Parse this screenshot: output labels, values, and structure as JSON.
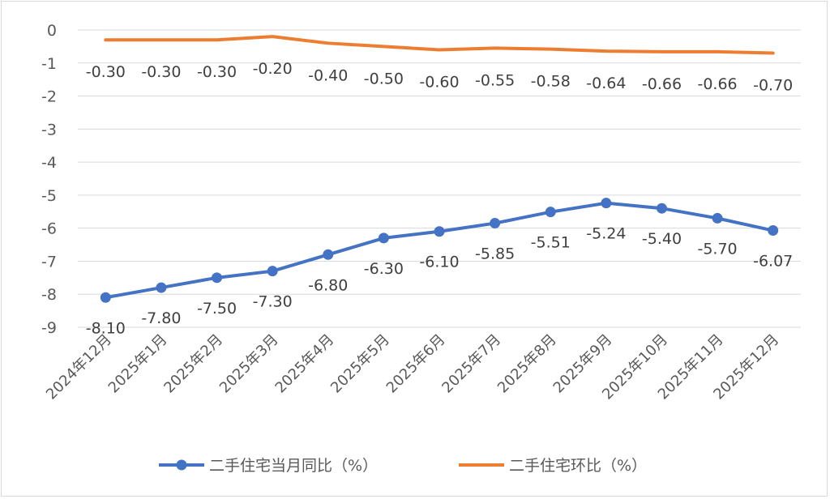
{
  "chart_data": {
    "type": "line",
    "categories": [
      "2024年12月",
      "2025年1月",
      "2025年2月",
      "2025年3月",
      "2025年4月",
      "2025年5月",
      "2025年6月",
      "2025年7月",
      "2025年8月",
      "2025年9月",
      "2025年10月",
      "2025年11月",
      "2025年12月"
    ],
    "series": [
      {
        "name": "二手住宅当月同比（%）",
        "color": "#4472C4",
        "marker": "circle",
        "values": [
          -8.1,
          -7.8,
          -7.5,
          -7.3,
          -6.8,
          -6.3,
          -6.1,
          -5.85,
          -5.51,
          -5.24,
          -5.4,
          -5.7,
          -6.07
        ],
        "labels": [
          "-8.10",
          "-7.80",
          "-7.50",
          "-7.30",
          "-6.80",
          "-6.30",
          "-6.10",
          "-5.85",
          "-5.51",
          "-5.24",
          "-5.40",
          "-5.70",
          "-6.07"
        ]
      },
      {
        "name": "二手住宅环比（%）",
        "color": "#ED7D31",
        "marker": "none",
        "values": [
          -0.3,
          -0.3,
          -0.3,
          -0.2,
          -0.4,
          -0.5,
          -0.6,
          -0.55,
          -0.58,
          -0.64,
          -0.66,
          -0.66,
          -0.7
        ],
        "labels": [
          "-0.30",
          "-0.30",
          "-0.30",
          "-0.20",
          "-0.40",
          "-0.50",
          "-0.60",
          "-0.55",
          "-0.58",
          "-0.64",
          "-0.66",
          "-0.66",
          "-0.70"
        ]
      }
    ],
    "ylim": [
      -9,
      0
    ],
    "yticks": [
      "0",
      "-1",
      "-2",
      "-3",
      "-4",
      "-5",
      "-6",
      "-7",
      "-8",
      "-9"
    ],
    "grid": true,
    "legend": "bottom"
  }
}
